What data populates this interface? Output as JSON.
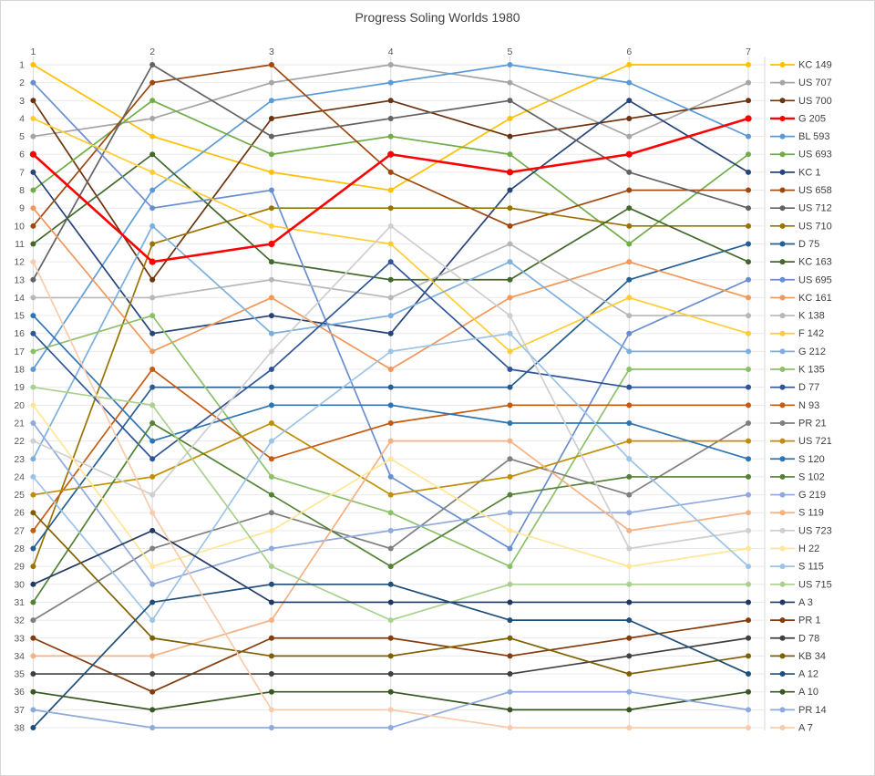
{
  "chart_data": {
    "type": "line",
    "subtype": "bump-rank-progression",
    "title": "Progress Soling Worlds 1980",
    "xlabel": "",
    "ylabel": "",
    "x_categories": [
      "1",
      "2",
      "3",
      "4",
      "5",
      "6",
      "7"
    ],
    "y_ticks": [
      "1",
      "2",
      "3",
      "4",
      "5",
      "6",
      "7",
      "8",
      "9",
      "10",
      "11",
      "12",
      "13",
      "14",
      "15",
      "16",
      "17",
      "18",
      "19",
      "20",
      "21",
      "22",
      "23",
      "24",
      "25",
      "26",
      "27",
      "28",
      "29",
      "30",
      "31",
      "32",
      "33",
      "34",
      "35",
      "36",
      "37",
      "38"
    ],
    "y_axis_meaning": "position per race (1 = leader)",
    "ylim": [
      1,
      38
    ],
    "grid": true,
    "legend_position": "right",
    "highlight_series": "G 205",
    "colors": {
      "title_text": "#404040",
      "axis_text": "#595959",
      "legend_text": "#404040",
      "grid_horizontal": "#eaeaea",
      "grid_vertical": "#d9d9d9",
      "background": "#ffffff",
      "frame_border": "#d7d7d7"
    },
    "series": [
      {
        "name": "KC 149",
        "color": "#FFC000",
        "ranks": [
          1,
          5,
          7,
          8,
          4,
          1,
          1
        ]
      },
      {
        "name": "US 707",
        "color": "#A5A5A5",
        "ranks": [
          5,
          4,
          2,
          1,
          2,
          5,
          2
        ]
      },
      {
        "name": "US 700",
        "color": "#6B3410",
        "ranks": [
          3,
          13,
          4,
          3,
          5,
          4,
          3
        ]
      },
      {
        "name": "G 205",
        "color": "#FF0000",
        "ranks": [
          6,
          12,
          11,
          6,
          7,
          6,
          4
        ]
      },
      {
        "name": "BL 593",
        "color": "#5B9BD5",
        "ranks": [
          18,
          8,
          3,
          2,
          1,
          2,
          5
        ]
      },
      {
        "name": "US 693",
        "color": "#70AD47",
        "ranks": [
          8,
          3,
          6,
          5,
          6,
          11,
          6
        ]
      },
      {
        "name": "KC 1",
        "color": "#264478",
        "ranks": [
          7,
          16,
          15,
          16,
          8,
          3,
          7
        ]
      },
      {
        "name": "US 658",
        "color": "#9E480E",
        "ranks": [
          10,
          2,
          1,
          7,
          10,
          8,
          8
        ]
      },
      {
        "name": "US 712",
        "color": "#636363",
        "ranks": [
          13,
          1,
          5,
          4,
          3,
          7,
          9
        ]
      },
      {
        "name": "US 710",
        "color": "#997300",
        "ranks": [
          29,
          11,
          9,
          9,
          9,
          10,
          10
        ]
      },
      {
        "name": "D 75",
        "color": "#255E91",
        "ranks": [
          28,
          19,
          19,
          19,
          19,
          13,
          11
        ]
      },
      {
        "name": "KC 163",
        "color": "#43682B",
        "ranks": [
          11,
          6,
          12,
          13,
          13,
          9,
          12
        ]
      },
      {
        "name": "US 695",
        "color": "#698ED0",
        "ranks": [
          2,
          9,
          8,
          24,
          28,
          16,
          13
        ]
      },
      {
        "name": "KC 161",
        "color": "#F1975A",
        "ranks": [
          9,
          17,
          14,
          18,
          14,
          12,
          14
        ]
      },
      {
        "name": "K 138",
        "color": "#B7B7B7",
        "ranks": [
          14,
          14,
          13,
          14,
          11,
          15,
          15
        ]
      },
      {
        "name": "F 142",
        "color": "#FFCD33",
        "ranks": [
          4,
          7,
          10,
          11,
          17,
          14,
          16
        ]
      },
      {
        "name": "G 212",
        "color": "#7CAFDD",
        "ranks": [
          23,
          10,
          16,
          15,
          12,
          17,
          17
        ]
      },
      {
        "name": "K 135",
        "color": "#8CC168",
        "ranks": [
          17,
          15,
          24,
          26,
          29,
          18,
          18
        ]
      },
      {
        "name": "D 77",
        "color": "#2F5597",
        "ranks": [
          16,
          23,
          18,
          12,
          18,
          19,
          19
        ]
      },
      {
        "name": "N 93",
        "color": "#C55A11",
        "ranks": [
          27,
          18,
          23,
          21,
          20,
          20,
          20
        ]
      },
      {
        "name": "PR 21",
        "color": "#7F7F7F",
        "ranks": [
          32,
          28,
          26,
          28,
          23,
          25,
          21
        ]
      },
      {
        "name": "US 721",
        "color": "#BF8F00",
        "ranks": [
          25,
          24,
          21,
          25,
          24,
          22,
          22
        ]
      },
      {
        "name": "S 120",
        "color": "#2E75B6",
        "ranks": [
          15,
          22,
          20,
          20,
          21,
          21,
          23
        ]
      },
      {
        "name": "S 102",
        "color": "#538135",
        "ranks": [
          31,
          21,
          25,
          29,
          25,
          24,
          24
        ]
      },
      {
        "name": "G 219",
        "color": "#8FAADC",
        "ranks": [
          21,
          30,
          28,
          27,
          26,
          26,
          25
        ]
      },
      {
        "name": "S 119",
        "color": "#F4B183",
        "ranks": [
          34,
          34,
          32,
          22,
          22,
          27,
          26
        ]
      },
      {
        "name": "US 723",
        "color": "#D0CECE",
        "ranks": [
          22,
          25,
          17,
          10,
          15,
          28,
          27
        ]
      },
      {
        "name": "H 22",
        "color": "#FFE699",
        "ranks": [
          20,
          29,
          27,
          23,
          27,
          29,
          28
        ]
      },
      {
        "name": "S 115",
        "color": "#9DC3E6",
        "ranks": [
          24,
          32,
          22,
          17,
          16,
          23,
          29
        ]
      },
      {
        "name": "US 715",
        "color": "#A9D18E",
        "ranks": [
          19,
          20,
          29,
          32,
          30,
          30,
          30
        ]
      },
      {
        "name": "A 3",
        "color": "#203864",
        "ranks": [
          30,
          27,
          31,
          31,
          31,
          31,
          31
        ]
      },
      {
        "name": "PR 1",
        "color": "#843C0C",
        "ranks": [
          33,
          36,
          33,
          33,
          34,
          33,
          32
        ]
      },
      {
        "name": "D 78",
        "color": "#404040",
        "ranks": [
          35,
          35,
          35,
          35,
          35,
          34,
          33
        ]
      },
      {
        "name": "KB 34",
        "color": "#7F6000",
        "ranks": [
          26,
          33,
          34,
          34,
          33,
          35,
          34
        ]
      },
      {
        "name": "A 12",
        "color": "#1F4E79",
        "ranks": [
          38,
          31,
          30,
          30,
          32,
          32,
          35
        ]
      },
      {
        "name": "A 10",
        "color": "#385723",
        "ranks": [
          36,
          37,
          36,
          36,
          37,
          37,
          36
        ]
      },
      {
        "name": "PR 14",
        "color": "#8EA9DB",
        "ranks": [
          37,
          38,
          38,
          38,
          36,
          36,
          37
        ]
      },
      {
        "name": "A 7",
        "color": "#F8CBAD",
        "ranks": [
          12,
          26,
          37,
          37,
          38,
          38,
          38
        ]
      }
    ]
  }
}
